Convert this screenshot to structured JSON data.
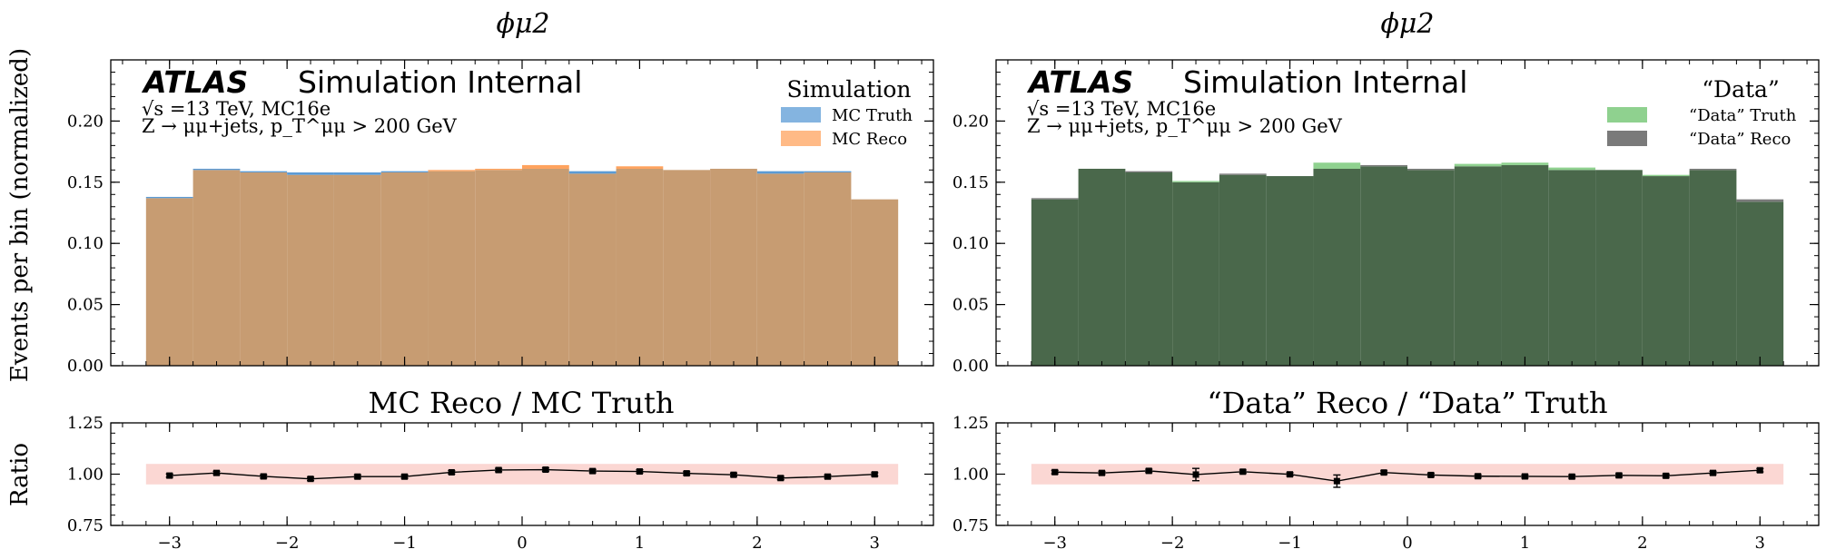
{
  "figure": {
    "ylabel_main": "Events per bin (normalized)",
    "ylabel_ratio": "Ratio",
    "atlas_label": "ATLAS",
    "atlas_sub": "Simulation Internal",
    "energy_line": "√s =13 TeV, MC16e",
    "process_line": "Z → μμ+jets, p_T^μμ > 200 GeV"
  },
  "chart_data": [
    {
      "type": "bar",
      "panel": "left-main",
      "title": "ϕμ2",
      "legend_title": "Simulation",
      "legend_position": "top-right",
      "ylim": [
        0.0,
        0.25
      ],
      "yticks": [
        "0.00",
        "0.05",
        "0.10",
        "0.15",
        "0.20"
      ],
      "x_edges": [
        -3.2,
        -2.8,
        -2.4,
        -2.0,
        -1.6,
        -1.2,
        -0.8,
        -0.4,
        0.0,
        0.4,
        0.8,
        1.2,
        1.6,
        2.0,
        2.4,
        2.8,
        3.2
      ],
      "series": [
        {
          "name": "MC Truth",
          "color": "#5b9bd5",
          "values": [
            0.138,
            0.161,
            0.159,
            0.158,
            0.158,
            0.159,
            0.159,
            0.16,
            0.161,
            0.159,
            0.161,
            0.16,
            0.161,
            0.159,
            0.159,
            0.136
          ]
        },
        {
          "name": "MC Reco",
          "color": "#ffa35e",
          "values": [
            0.137,
            0.16,
            0.158,
            0.156,
            0.156,
            0.158,
            0.16,
            0.161,
            0.164,
            0.157,
            0.163,
            0.16,
            0.161,
            0.157,
            0.158,
            0.136
          ]
        }
      ]
    },
    {
      "type": "bar",
      "panel": "right-main",
      "title": "ϕμ2",
      "legend_title": "“Data”",
      "legend_position": "top-right",
      "ylim": [
        0.0,
        0.25
      ],
      "yticks": [
        "0.00",
        "0.05",
        "0.10",
        "0.15",
        "0.20"
      ],
      "x_edges": [
        -3.2,
        -2.8,
        -2.4,
        -2.0,
        -1.6,
        -1.2,
        -0.8,
        -0.4,
        0.0,
        0.4,
        0.8,
        1.2,
        1.6,
        2.0,
        2.4,
        2.8,
        3.2
      ],
      "series": [
        {
          "name": "“Data” Truth",
          "color": "#8fd18f",
          "values": [
            0.136,
            0.161,
            0.158,
            0.151,
            0.156,
            0.155,
            0.166,
            0.163,
            0.16,
            0.165,
            0.166,
            0.162,
            0.16,
            0.156,
            0.16,
            0.134
          ]
        },
        {
          "name": "“Data” Reco",
          "color": "#7a7a7a",
          "values": [
            0.137,
            0.161,
            0.159,
            0.15,
            0.157,
            0.155,
            0.161,
            0.164,
            0.161,
            0.163,
            0.164,
            0.16,
            0.16,
            0.155,
            0.161,
            0.136
          ]
        }
      ]
    },
    {
      "type": "line",
      "panel": "left-ratio",
      "title": "MC Reco / MC Truth",
      "ylim": [
        0.75,
        1.25
      ],
      "yticks": [
        "0.75",
        "1.00",
        "1.25"
      ],
      "xlim": [
        -3.5,
        3.5
      ],
      "xticks": [
        "−3",
        "−2",
        "−1",
        "0",
        "1",
        "2",
        "3"
      ],
      "band": [
        0.95,
        1.05
      ],
      "x": [
        -3.0,
        -2.6,
        -2.2,
        -1.8,
        -1.4,
        -1.0,
        -0.6,
        -0.2,
        0.2,
        0.6,
        1.0,
        1.4,
        1.8,
        2.2,
        2.6,
        3.0
      ],
      "y": [
        0.993,
        1.006,
        0.989,
        0.977,
        0.988,
        0.988,
        1.009,
        1.02,
        1.022,
        1.015,
        1.013,
        1.004,
        0.997,
        0.981,
        0.988,
        0.999
      ],
      "yerr": [
        0.008,
        0.008,
        0.008,
        0.008,
        0.008,
        0.008,
        0.008,
        0.008,
        0.008,
        0.008,
        0.008,
        0.008,
        0.008,
        0.008,
        0.008,
        0.008
      ]
    },
    {
      "type": "line",
      "panel": "right-ratio",
      "title": "“Data” Reco / “Data” Truth",
      "ylim": [
        0.75,
        1.25
      ],
      "yticks": [
        "0.75",
        "1.00",
        "1.25"
      ],
      "xlim": [
        -3.5,
        3.5
      ],
      "xticks": [
        "−3",
        "−2",
        "−1",
        "0",
        "1",
        "2",
        "3"
      ],
      "band": [
        0.95,
        1.05
      ],
      "x": [
        -3.0,
        -2.6,
        -2.2,
        -1.8,
        -1.4,
        -1.0,
        -0.6,
        -0.2,
        0.2,
        0.6,
        1.0,
        1.4,
        1.8,
        2.2,
        2.6,
        3.0
      ],
      "y": [
        1.01,
        1.006,
        1.016,
        0.998,
        1.012,
        0.999,
        0.966,
        1.008,
        0.996,
        0.99,
        0.989,
        0.988,
        0.994,
        0.992,
        1.006,
        1.019
      ],
      "yerr": [
        0.008,
        0.008,
        0.008,
        0.03,
        0.008,
        0.008,
        0.03,
        0.008,
        0.008,
        0.008,
        0.008,
        0.008,
        0.008,
        0.008,
        0.008,
        0.008
      ]
    }
  ]
}
